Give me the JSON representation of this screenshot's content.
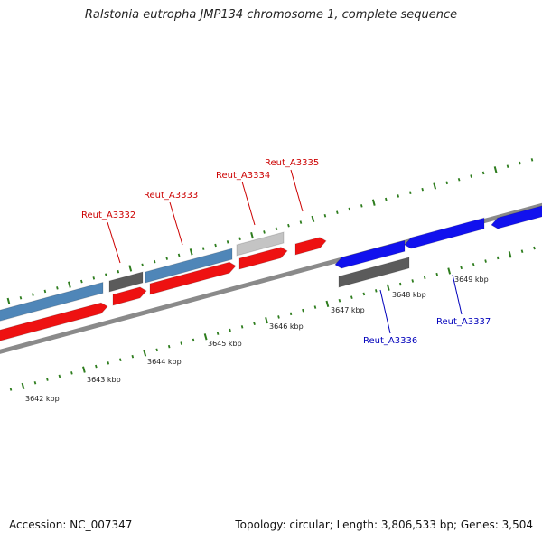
{
  "header": {
    "title": "Ralstonia eutropha JMP134 chromosome 1, complete sequence"
  },
  "footer": {
    "accession": "Accession: NC_007347",
    "summary": "Topology: circular; Length: 3,806,533 bp; Genes: 3,504"
  },
  "ruler_labels": [
    "3642 kbp",
    "3643 kbp",
    "3644 kbp",
    "3645 kbp",
    "3646 kbp",
    "3647 kbp",
    "3648 kbp",
    "3649 kbp"
  ],
  "colors": {
    "forward_cds": "#ee1111",
    "reverse_cds": "#1111ee",
    "forward_gene": "#4f86b8",
    "gene_dark": "#5b5b5b",
    "gene_light": "#c4c4c4",
    "backbone": "#8a8a8a",
    "tick": "#2e7d1e",
    "forward_label": "#cc0000",
    "reverse_label": "#0000bb"
  },
  "gene_labels": {
    "reut_a3332": "Reut_A3332",
    "reut_a3333": "Reut_A3333",
    "reut_a3334": "Reut_A3334",
    "reut_a3335": "Reut_A3335",
    "reut_a3336": "Reut_A3336",
    "reut_a3337": "Reut_A3337"
  }
}
